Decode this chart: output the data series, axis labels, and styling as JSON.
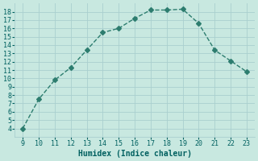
{
  "x": [
    9,
    10,
    11,
    12,
    13,
    14,
    15,
    16,
    17,
    18,
    19,
    20,
    21,
    22,
    23
  ],
  "y": [
    4,
    7.5,
    9.8,
    11.3,
    13.4,
    15.5,
    16.0,
    17.2,
    18.2,
    18.2,
    18.3,
    16.6,
    13.4,
    12.1,
    10.8
  ],
  "xlabel": "Humidex (Indice chaleur)",
  "xlim": [
    8.5,
    23.5
  ],
  "ylim": [
    3,
    19
  ],
  "xticks": [
    9,
    10,
    11,
    12,
    13,
    14,
    15,
    16,
    17,
    18,
    19,
    20,
    21,
    22,
    23
  ],
  "yticks": [
    4,
    5,
    6,
    7,
    8,
    9,
    10,
    11,
    12,
    13,
    14,
    15,
    16,
    17,
    18
  ],
  "line_color": "#2d7d6f",
  "bg_color": "#c8e8e0",
  "grid_color": "#aacfcf",
  "label_color": "#006060",
  "tick_color": "#006060",
  "font_family": "monospace"
}
